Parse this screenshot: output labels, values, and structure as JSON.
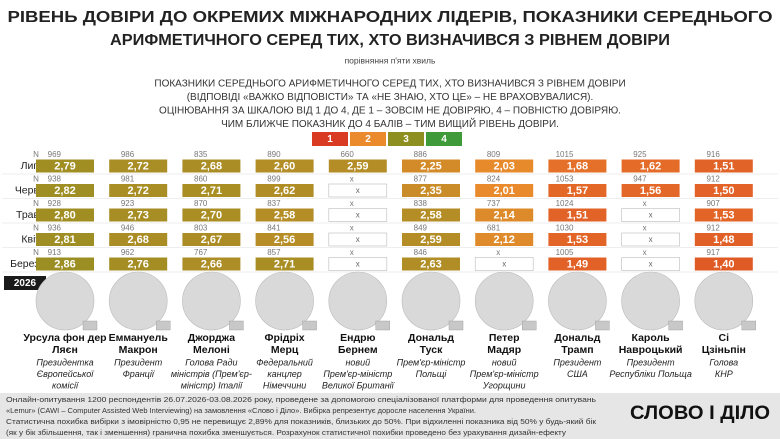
{
  "header": {
    "title": [
      "РІВЕНЬ ДОВІРИ ДО ОКРЕМИХ МІЖНАРОДНИХ ЛІДЕРІВ, ПОКАЗНИКИ СЕРЕДНЬОГО",
      "АРИФМЕТИЧНОГО СЕРЕД ТИХ, ХТО ВИЗНАЧИВСЯ З РІВНЕМ ДОВІРИ"
    ],
    "subtitle": "порівняння п'яти хвиль"
  },
  "notes": [
    "ПОКАЗНИКИ СЕРЕДНЬОГО АРИФМЕТИЧНОГО СЕРЕД ТИХ, ХТО ВИЗНАЧИВСЯ З РІВНЕМ ДОВІРИ",
    "(ВІДПОВІДІ «ВАЖКО ВІДПОВІСТИ» ТА «НЕ ЗНАЮ, ХТО ЦЕ» – НЕ ВРАХОВУВАЛИСЯ).",
    "ОЦІНЮВАННЯ ЗА ШКАЛОЮ ВІД 1 ДО 4, ДЕ 1 – ЗОВСІМ НЕ ДОВІРЯЮ, 4 – ПОВНІСТЮ ДОВІРЯЮ.",
    "ЧИМ БЛИЖЧЕ ПОКАЗНИК ДО 4 БАЛІВ – ТИМ ВИЩИЙ РІВЕНЬ ДОВІРИ."
  ],
  "scale": [
    "1",
    "2",
    "3",
    "4"
  ],
  "table": {
    "year": "2026",
    "n_label": "N",
    "rows": [
      "Лип.",
      "Черв.",
      "Трав.",
      "Квіт.",
      "Берез."
    ],
    "leaders": [
      {
        "name": [
          "Урсула фон дер",
          "Ляєн"
        ],
        "role": [
          "Президентка",
          "Європейської",
          "комісії"
        ],
        "n": [
          "969",
          "938",
          "928",
          "936",
          "913"
        ],
        "values": [
          "2,79",
          "2,82",
          "2,80",
          "2,81",
          "2,86"
        ]
      },
      {
        "name": [
          "Еммануель",
          "Макрон"
        ],
        "role": [
          "Президент",
          "Франції"
        ],
        "n": [
          "986",
          "981",
          "923",
          "946",
          "962"
        ],
        "values": [
          "2,72",
          "2,72",
          "2,73",
          "2,68",
          "2,76"
        ]
      },
      {
        "name": [
          "Джорджа",
          "Мелоні"
        ],
        "role": [
          "Голова Ради",
          "міністрів (Прем'єр-",
          "міністр) Італії"
        ],
        "n": [
          "835",
          "860",
          "870",
          "803",
          "767"
        ],
        "values": [
          "2,68",
          "2,71",
          "2,70",
          "2,67",
          "2,66"
        ]
      },
      {
        "name": [
          "Фрідріх",
          "Мерц"
        ],
        "role": [
          "Федеральний",
          "канцлер",
          "Німеччини"
        ],
        "n": [
          "890",
          "899",
          "837",
          "841",
          "857"
        ],
        "values": [
          "2,60",
          "2,62",
          "2,58",
          "2,56",
          "2,71"
        ]
      },
      {
        "name": [
          "Ендрю",
          "Бернем"
        ],
        "role": [
          "новий",
          "Прем'єр-міністр",
          "Великої Британії"
        ],
        "n": [
          "660",
          "x",
          "x",
          "x",
          "x"
        ],
        "values": [
          "2,59",
          "x",
          "x",
          "x",
          "x"
        ]
      },
      {
        "name": [
          "Дональд",
          "Туск"
        ],
        "role": [
          "Прем'єр-міністр",
          "Польщі"
        ],
        "n": [
          "886",
          "877",
          "838",
          "849",
          "846"
        ],
        "values": [
          "2,25",
          "2,35",
          "2,58",
          "2,59",
          "2,63"
        ]
      },
      {
        "name": [
          "Петер",
          "Мадяр"
        ],
        "role": [
          "новий",
          "Прем'єр-міністр",
          "Угорщини"
        ],
        "n": [
          "809",
          "824",
          "737",
          "681",
          "x"
        ],
        "values": [
          "2,03",
          "2,01",
          "2,14",
          "2,12",
          "x"
        ]
      },
      {
        "name": [
          "Дональд",
          "Трамп"
        ],
        "role": [
          "Президент",
          "США"
        ],
        "n": [
          "1015",
          "1053",
          "1024",
          "1030",
          "1005"
        ],
        "values": [
          "1,68",
          "1,57",
          "1,51",
          "1,53",
          "1,49"
        ]
      },
      {
        "name": [
          "Кароль",
          "Навроцький"
        ],
        "role": [
          "Президент",
          "Республіки Польща"
        ],
        "n": [
          "925",
          "947",
          "x",
          "x",
          "x"
        ],
        "values": [
          "1,62",
          "1,56",
          "x",
          "x",
          "x"
        ]
      },
      {
        "name": [
          "Сі",
          "Цзіньпін"
        ],
        "role": [
          "Голова",
          "КНР"
        ],
        "n": [
          "916",
          "912",
          "907",
          "912",
          "917"
        ],
        "values": [
          "1,51",
          "1,50",
          "1,53",
          "1,48",
          "1,40"
        ]
      }
    ]
  },
  "footer": [
    "Онлайн-опитування 1200 респондентів 26.07.2026-03.08.2026 року, проведене за допомогою спеціалізованої платформи для проведення опитувань",
    "«Lemur» (CAWI – Computer Assisted Web Interviewing) на замовлення «Слово і Діло». Вибірка репрезентує доросле населення України.",
    "Статистична похибка вибірки з імовірністю 0,95 не перевищує 2,89% для показників, близьких до 50%. При відхиленні показника від 50% у будь-який бік",
    "(як у бік збільшення, так і зменшення) гранична похибка зменшується. Розрахунок статистичної похибки проведено без урахування дизайн-ефекту"
  ],
  "logo": "СЛОВО І ДІЛО"
}
